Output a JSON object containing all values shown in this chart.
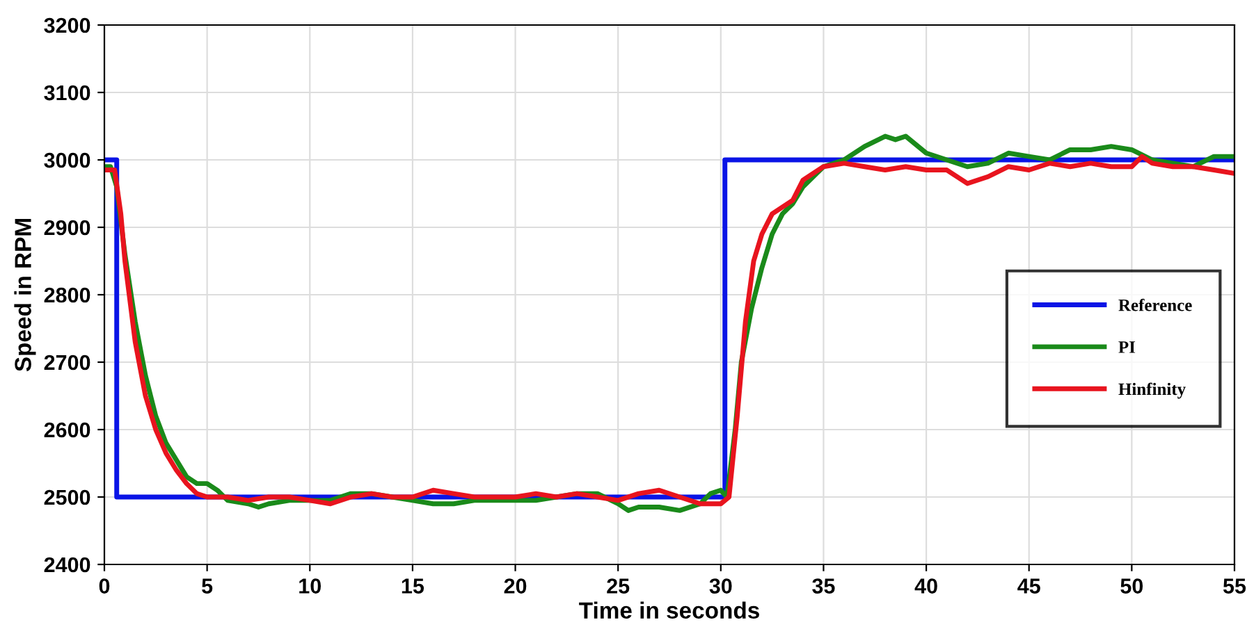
{
  "chart_data": {
    "type": "line",
    "xlabel": "Time in seconds",
    "ylabel": "Speed in RPM",
    "xlim": [
      0,
      55
    ],
    "ylim": [
      2400,
      3200
    ],
    "xticks": [
      0,
      5,
      10,
      15,
      20,
      25,
      30,
      35,
      40,
      45,
      50,
      55
    ],
    "yticks": [
      2400,
      2500,
      2600,
      2700,
      2800,
      2900,
      3000,
      3100,
      3200
    ],
    "grid": true,
    "legend": "right",
    "line_style": "solid",
    "marker": "none",
    "series": [
      {
        "name": "Reference",
        "color": "#0a14e6",
        "x": [
          0,
          0.6,
          0.6,
          30.2,
          30.2,
          55
        ],
        "values": [
          3000,
          3000,
          2500,
          2500,
          3000,
          3000
        ]
      },
      {
        "name": "PI",
        "color": "#1a8a1a",
        "x": [
          0,
          0.3,
          0.6,
          1,
          1.5,
          2,
          2.5,
          3,
          3.5,
          4,
          4.5,
          5,
          5.5,
          6,
          7,
          7.5,
          8,
          9,
          10,
          11,
          12,
          13,
          14,
          15,
          16,
          17,
          18,
          19,
          20,
          21,
          22,
          23,
          24,
          25,
          25.5,
          26,
          27,
          28,
          29,
          29.5,
          30,
          30.3,
          30.7,
          31,
          31.5,
          32,
          32.5,
          33,
          33.5,
          34,
          35,
          36,
          37,
          38,
          38.5,
          39,
          40,
          41,
          42,
          43,
          44,
          45,
          46,
          47,
          48,
          49,
          50,
          51,
          52,
          53,
          54,
          55
        ],
        "values": [
          2990,
          2990,
          2960,
          2860,
          2760,
          2680,
          2620,
          2580,
          2555,
          2530,
          2520,
          2520,
          2510,
          2495,
          2490,
          2485,
          2490,
          2495,
          2495,
          2495,
          2505,
          2505,
          2500,
          2495,
          2490,
          2490,
          2495,
          2495,
          2495,
          2495,
          2500,
          2505,
          2505,
          2490,
          2480,
          2485,
          2485,
          2480,
          2490,
          2505,
          2510,
          2500,
          2600,
          2700,
          2780,
          2840,
          2890,
          2920,
          2935,
          2960,
          2990,
          3000,
          3020,
          3035,
          3030,
          3035,
          3010,
          3000,
          2990,
          2995,
          3010,
          3005,
          3000,
          3015,
          3015,
          3020,
          3015,
          3000,
          2995,
          2990,
          3005,
          3005
        ]
      },
      {
        "name": "Hinfinity",
        "color": "#e8141e",
        "x": [
          0,
          0.5,
          0.8,
          1,
          1.5,
          2,
          2.5,
          3,
          3.5,
          4,
          4.5,
          5,
          6,
          7,
          8,
          9,
          10,
          11,
          12,
          13,
          14,
          15,
          16,
          17,
          18,
          19,
          20,
          21,
          22,
          23,
          24,
          25,
          26,
          27,
          28,
          29,
          30,
          30.4,
          30.8,
          31.2,
          31.6,
          32,
          32.5,
          33,
          33.5,
          34,
          35,
          36,
          37,
          38,
          39,
          40,
          41,
          42,
          43,
          44,
          45,
          46,
          47,
          48,
          49,
          50,
          50.5,
          51,
          52,
          53,
          54,
          55
        ],
        "values": [
          2985,
          2985,
          2920,
          2850,
          2730,
          2650,
          2600,
          2565,
          2540,
          2520,
          2505,
          2500,
          2500,
          2495,
          2500,
          2500,
          2495,
          2490,
          2500,
          2505,
          2500,
          2500,
          2510,
          2505,
          2500,
          2500,
          2500,
          2505,
          2500,
          2505,
          2500,
          2495,
          2505,
          2510,
          2500,
          2490,
          2490,
          2500,
          2620,
          2760,
          2850,
          2890,
          2920,
          2930,
          2940,
          2970,
          2990,
          2995,
          2990,
          2985,
          2990,
          2985,
          2985,
          2965,
          2975,
          2990,
          2985,
          2995,
          2990,
          2995,
          2990,
          2990,
          3005,
          2995,
          2990,
          2990,
          2985,
          2980
        ]
      }
    ]
  }
}
